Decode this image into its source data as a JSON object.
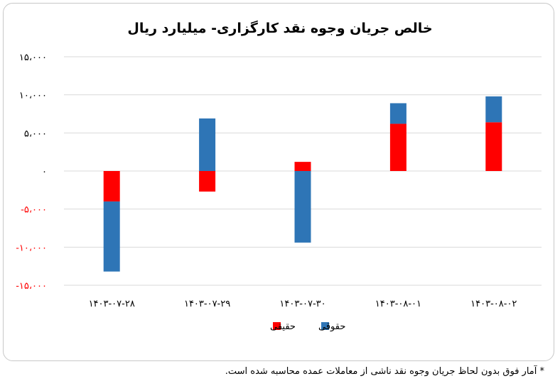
{
  "chart_data": {
    "type": "bar",
    "stacked": true,
    "title": "خالص جریان وجوه نقد کارگزاری- میلیارد ریال",
    "categories": [
      "۱۴۰۳-۰۷-۲۸",
      "۱۴۰۳-۰۷-۲۹",
      "۱۴۰۳-۰۷-۳۰",
      "۱۴۰۳-۰۸-۰۱",
      "۱۴۰۳-۰۸-۰۲"
    ],
    "series": [
      {
        "name": "حقیقی",
        "color": "#ff0000",
        "values": [
          -4000,
          -2700,
          1200,
          6200,
          6400
        ]
      },
      {
        "name": "حقوقی",
        "color": "#2e75b6",
        "values": [
          -9200,
          6900,
          -9400,
          2700,
          3400
        ]
      }
    ],
    "ylim": [
      -15000,
      15000
    ],
    "yticks": [
      15000,
      10000,
      5000,
      0,
      -5000,
      -10000,
      -15000
    ],
    "ytick_labels": [
      "۱۵،۰۰۰",
      "۱۰،۰۰۰",
      "۵،۰۰۰",
      "۰",
      "-۵،۰۰۰",
      "-۱۰،۰۰۰",
      "-۱۵،۰۰۰"
    ],
    "negative_tick_color": "#ff0000",
    "grid": true,
    "legend_position": "bottom"
  },
  "footnote": "* آمار فوق بدون لحاظ جریان وجوه نقد ناشی از معاملات عمده محاسبه شده است."
}
